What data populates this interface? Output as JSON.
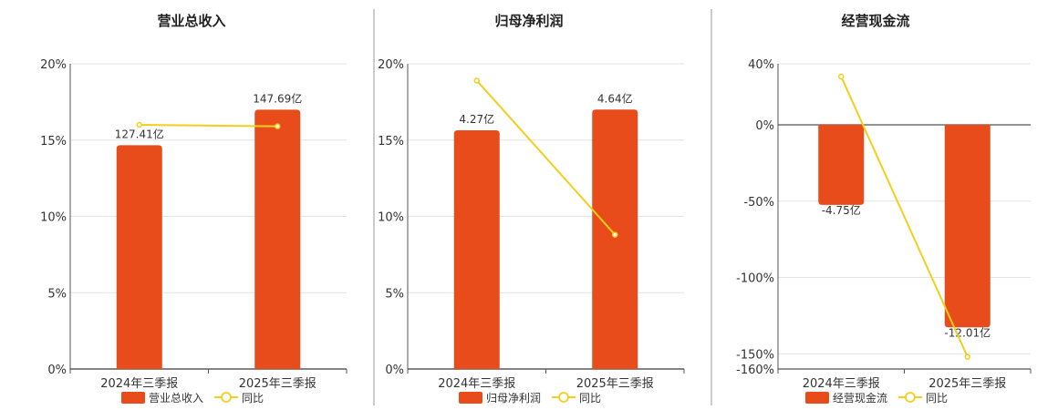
{
  "colors": {
    "bar": "#e84c1a",
    "line": "#f2cf1d",
    "grid": "#e3e3e3",
    "axis": "#555555",
    "divider": "#999999"
  },
  "chart_data": [
    {
      "type": "bar",
      "title": "营业总收入",
      "categories": [
        "2024年三季报",
        "2025年三季报"
      ],
      "bar_series": {
        "name": "营业总收入",
        "values": [
          127.41,
          147.69
        ],
        "labels": [
          "127.41亿",
          "147.69亿"
        ]
      },
      "line_series": {
        "name": "同比",
        "values": [
          16.0,
          15.9
        ]
      },
      "yticks": [
        "20%",
        "15%",
        "10%",
        "5%",
        "0%"
      ],
      "ylim": [
        0,
        20
      ],
      "bar_ylim": [
        0,
        173.8
      ],
      "grid": true,
      "legend_position": "bottom"
    },
    {
      "type": "bar",
      "title": "归母净利润",
      "categories": [
        "2024年三季报",
        "2025年三季报"
      ],
      "bar_series": {
        "name": "归母净利润",
        "values": [
          4.27,
          4.64
        ],
        "labels": [
          "4.27亿",
          "4.64亿"
        ]
      },
      "line_series": {
        "name": "同比",
        "values": [
          18.9,
          8.8
        ]
      },
      "yticks": [
        "20%",
        "15%",
        "10%",
        "5%",
        "0%"
      ],
      "ylim": [
        0,
        20
      ],
      "bar_ylim": [
        0,
        5.46
      ],
      "grid": true,
      "legend_position": "bottom"
    },
    {
      "type": "bar",
      "title": "经营现金流",
      "categories": [
        "2024年三季报",
        "2025年三季报"
      ],
      "bar_series": {
        "name": "经营现金流",
        "values": [
          -4.75,
          -12.01
        ],
        "labels": [
          "-4.75亿",
          "-12.01亿"
        ]
      },
      "line_series": {
        "name": "同比",
        "values": [
          31.6,
          -152.0
        ]
      },
      "yticks": [
        "40%",
        "0%",
        "-50%",
        "-100%",
        "-150%",
        "-160%"
      ],
      "ylim": [
        -160,
        40
      ],
      "bar_ylim": [
        -14.48,
        3.62
      ],
      "grid": true,
      "legend_position": "bottom"
    }
  ]
}
